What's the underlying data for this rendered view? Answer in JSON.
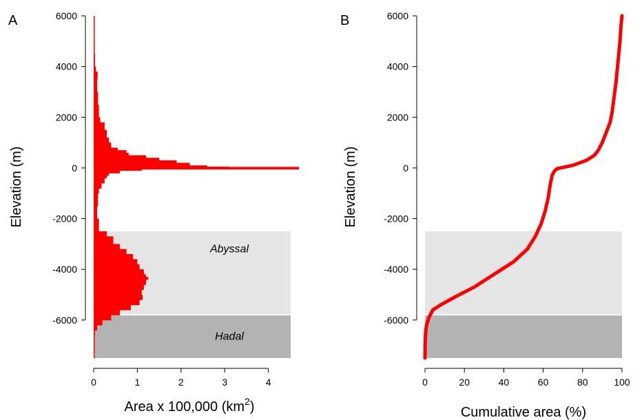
{
  "chart_data": [
    {
      "panel_label": "A",
      "type": "bar",
      "orientation": "horizontal",
      "xlabel": "Area x 100,000 (km",
      "xlabel_sup": "2",
      "xlabel_close": ")",
      "ylabel": "Elevation (m)",
      "xlim": [
        0,
        4.7
      ],
      "ylim": [
        -7500,
        6000
      ],
      "xticks": [
        0,
        1,
        2,
        3,
        4
      ],
      "yticks": [
        6000,
        4000,
        2000,
        0,
        -2000,
        -4000,
        -6000
      ],
      "zones": [
        {
          "label": "Abyssal",
          "from": -5800,
          "to": -2500,
          "color": "#e5e5e5"
        },
        {
          "label": "Hadal",
          "from": -7500,
          "to": -5800,
          "color": "#b3b3b3"
        }
      ],
      "series_color": "#ff0000",
      "elevation": [
        6000,
        5000,
        4500,
        4000,
        3800,
        3500,
        3000,
        2500,
        2000,
        1800,
        1500,
        1200,
        1000,
        800,
        700,
        600,
        500,
        400,
        300,
        200,
        100,
        50,
        0,
        -50,
        -100,
        -200,
        -300,
        -400,
        -600,
        -800,
        -1000,
        -1500,
        -2000,
        -2500,
        -2700,
        -3000,
        -3200,
        -3400,
        -3600,
        -3800,
        -4000,
        -4200,
        -4300,
        -4400,
        -4600,
        -4800,
        -5000,
        -5200,
        -5400,
        -5600,
        -5800,
        -6000,
        -6200,
        -6400,
        -6600,
        -7000,
        -7500
      ],
      "area": [
        0.01,
        0.02,
        0.03,
        0.05,
        0.09,
        0.08,
        0.1,
        0.12,
        0.15,
        0.25,
        0.3,
        0.35,
        0.4,
        0.55,
        0.75,
        0.8,
        1.2,
        1.5,
        1.9,
        2.2,
        2.6,
        3.1,
        4.7,
        1.1,
        0.6,
        0.35,
        0.3,
        0.25,
        0.18,
        0.12,
        0.1,
        0.08,
        0.12,
        0.3,
        0.45,
        0.6,
        0.75,
        0.9,
        1.0,
        1.05,
        1.15,
        1.2,
        1.25,
        1.2,
        1.15,
        1.1,
        1.12,
        1.05,
        0.85,
        0.6,
        0.4,
        0.2,
        0.08,
        0.03,
        0.02,
        0.01,
        0.0
      ]
    },
    {
      "panel_label": "B",
      "type": "line",
      "xlabel": "Cumulative area (%)",
      "ylabel": "Elevation (m)",
      "xlim": [
        0,
        100
      ],
      "ylim": [
        -7500,
        6000
      ],
      "xticks": [
        0,
        20,
        40,
        60,
        80,
        100
      ],
      "yticks": [
        6000,
        4000,
        2000,
        0,
        -2000,
        -4000,
        -6000
      ],
      "zones": [
        {
          "label": "",
          "from": -5800,
          "to": -2500,
          "color": "#e5e5e5"
        },
        {
          "label": "",
          "from": -7500,
          "to": -5800,
          "color": "#b3b3b3"
        }
      ],
      "series_color": "#ff0000",
      "x": [
        0.0,
        0.1,
        0.3,
        0.8,
        2,
        4,
        8,
        15,
        25,
        35,
        45,
        52,
        56,
        59,
        61,
        62.5,
        63.5,
        64.5,
        65.5,
        66.5,
        67.5,
        70,
        75,
        82,
        86,
        88,
        90,
        92,
        94,
        95,
        96,
        97,
        98,
        99,
        99.5,
        100
      ],
      "y": [
        -7500,
        -7000,
        -6500,
        -6200,
        -5900,
        -5600,
        -5400,
        -5100,
        -4700,
        -4200,
        -3700,
        -3200,
        -2700,
        -2200,
        -1700,
        -1200,
        -700,
        -300,
        -150,
        -60,
        -20,
        20,
        100,
        300,
        500,
        700,
        1000,
        1400,
        1800,
        2200,
        2800,
        3400,
        4200,
        5000,
        5600,
        6000
      ]
    }
  ]
}
